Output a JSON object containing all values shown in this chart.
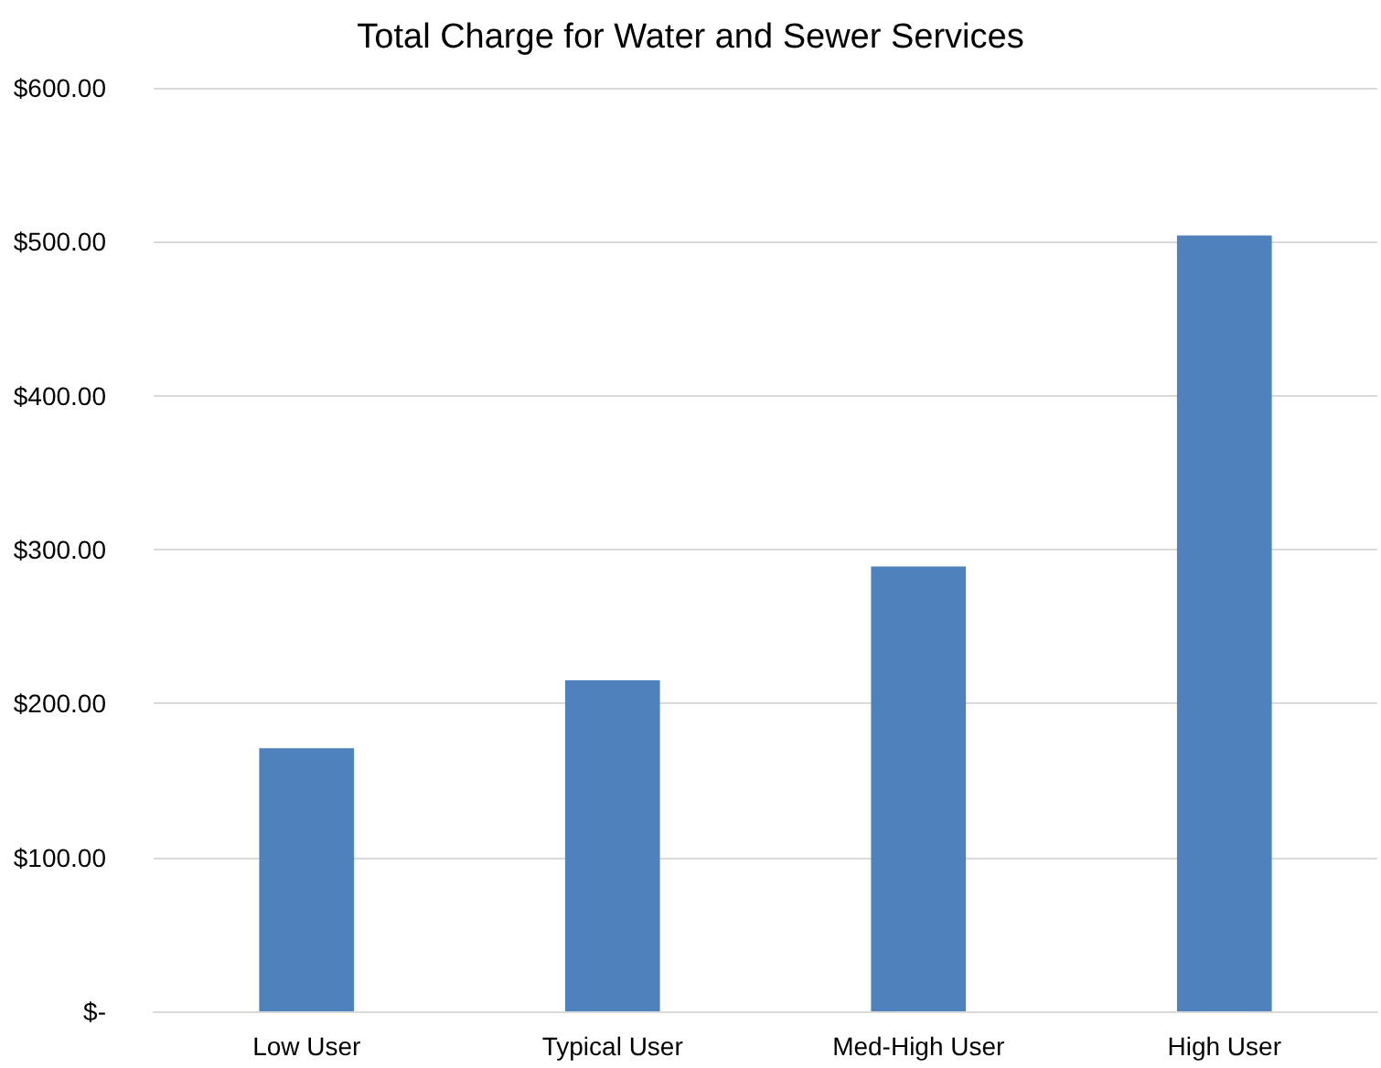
{
  "chart_data": {
    "type": "bar",
    "title": "Total Charge for Water and Sewer Services",
    "categories": [
      "Low User",
      "Typical User",
      "Med-High User",
      "High User"
    ],
    "values": [
      171,
      215,
      289,
      504
    ],
    "color": "#4f81bd",
    "ylim": [
      0,
      600
    ],
    "yticks": [
      {
        "value": 0,
        "label": "$-"
      },
      {
        "value": 100,
        "label": "$100.00"
      },
      {
        "value": 200,
        "label": "$200.00"
      },
      {
        "value": 300,
        "label": "$300.00"
      },
      {
        "value": 400,
        "label": "$400.00"
      },
      {
        "value": 500,
        "label": "$500.00"
      },
      {
        "value": 600,
        "label": "$600.00"
      }
    ],
    "grid": true
  }
}
